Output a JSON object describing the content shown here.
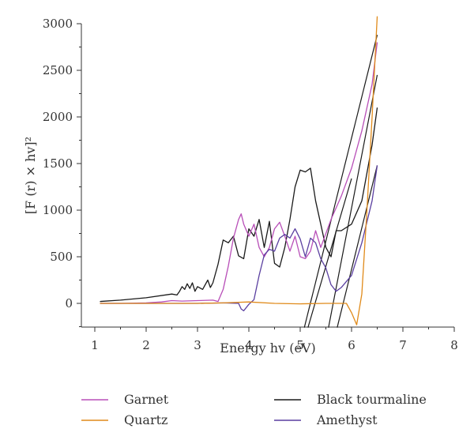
{
  "chart_data": {
    "type": "line",
    "xlabel": "Energy hv (eV)",
    "ylabel": "[F (r) × hv]²",
    "xlim": [
      0.75,
      8
    ],
    "ylim": [
      -260,
      3000
    ],
    "xticks": [
      1,
      2,
      3,
      4,
      5,
      6,
      7,
      8
    ],
    "yticks": [
      0,
      500,
      1000,
      1500,
      2000,
      2500,
      3000
    ],
    "grid": false,
    "legend_position": "bottom",
    "series": [
      {
        "name": "Garnet",
        "color": "#b84fb8",
        "x": [
          1.1,
          1.5,
          2.0,
          2.3,
          2.5,
          2.7,
          3.0,
          3.3,
          3.4,
          3.5,
          3.6,
          3.7,
          3.8,
          3.85,
          3.9,
          4.0,
          4.1,
          4.2,
          4.3,
          4.4,
          4.5,
          4.6,
          4.7,
          4.8,
          4.9,
          5.0,
          5.1,
          5.2,
          5.3,
          5.4,
          5.6,
          5.8,
          6.0,
          6.2,
          6.4,
          6.5
        ],
        "y": [
          0,
          0,
          5,
          15,
          30,
          25,
          30,
          35,
          20,
          150,
          400,
          700,
          900,
          960,
          850,
          720,
          850,
          600,
          500,
          600,
          800,
          870,
          720,
          560,
          720,
          500,
          480,
          560,
          780,
          600,
          900,
          1150,
          1450,
          1850,
          2350,
          2800
        ]
      },
      {
        "name": "Quartz",
        "color": "#e08a1a",
        "x": [
          1.1,
          2.0,
          3.0,
          3.5,
          4.0,
          4.5,
          5.0,
          5.5,
          5.9,
          6.0,
          6.1,
          6.2,
          6.3,
          6.4,
          6.5
        ],
        "y": [
          0,
          0,
          0,
          5,
          15,
          0,
          -5,
          0,
          0,
          -100,
          -230,
          100,
          1000,
          2000,
          3080
        ]
      },
      {
        "name": "Black tourmaline",
        "color": "#1a1a1a",
        "x": [
          1.1,
          1.5,
          2.0,
          2.5,
          2.6,
          2.65,
          2.7,
          2.75,
          2.8,
          2.85,
          2.9,
          2.95,
          3.0,
          3.1,
          3.2,
          3.25,
          3.3,
          3.4,
          3.5,
          3.6,
          3.7,
          3.8,
          3.9,
          4.0,
          4.1,
          4.2,
          4.3,
          4.4,
          4.5,
          4.6,
          4.7,
          4.8,
          4.9,
          5.0,
          5.1,
          5.2,
          5.3,
          5.4,
          5.5,
          5.6,
          5.7,
          5.8,
          6.0,
          6.2,
          6.4,
          6.5
        ],
        "y": [
          20,
          35,
          60,
          100,
          90,
          130,
          180,
          150,
          210,
          160,
          220,
          130,
          180,
          150,
          250,
          170,
          220,
          420,
          680,
          650,
          720,
          510,
          480,
          800,
          720,
          900,
          600,
          880,
          430,
          390,
          600,
          900,
          1250,
          1430,
          1410,
          1450,
          1100,
          850,
          600,
          500,
          780,
          780,
          850,
          1100,
          1700,
          2100
        ]
      },
      {
        "name": "Amethyst",
        "color": "#5a3fa0",
        "x": [
          1.1,
          2.0,
          3.0,
          3.5,
          3.8,
          3.85,
          3.9,
          4.0,
          4.1,
          4.2,
          4.3,
          4.4,
          4.5,
          4.6,
          4.7,
          4.8,
          4.9,
          5.0,
          5.1,
          5.2,
          5.3,
          5.4,
          5.5,
          5.6,
          5.7,
          5.8,
          6.0,
          6.2,
          6.4,
          6.5
        ],
        "y": [
          0,
          0,
          0,
          5,
          0,
          -60,
          -80,
          -10,
          40,
          300,
          520,
          580,
          560,
          700,
          740,
          700,
          800,
          690,
          500,
          700,
          650,
          480,
          380,
          200,
          130,
          170,
          300,
          650,
          1100,
          1480
        ]
      }
    ],
    "fit_lines": [
      {
        "x": [
          5.08,
          6.5
        ],
        "y": [
          -260,
          2880
        ]
      },
      {
        "x": [
          5.15,
          6.0
        ],
        "y": [
          -260,
          1340
        ]
      },
      {
        "x": [
          5.55,
          6.5
        ],
        "y": [
          -260,
          2450
        ]
      },
      {
        "x": [
          5.72,
          6.5
        ],
        "y": [
          -260,
          1480
        ]
      }
    ]
  }
}
